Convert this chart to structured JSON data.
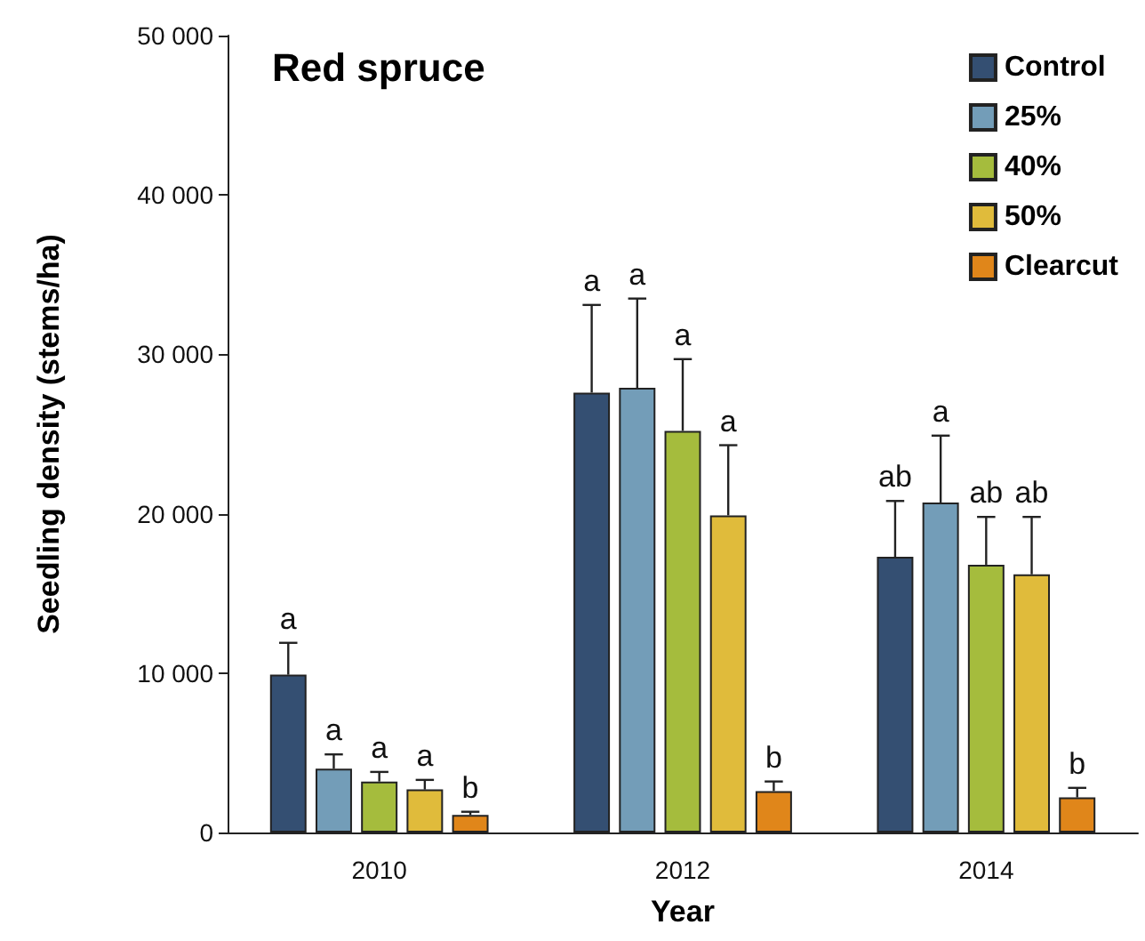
{
  "chart_data": {
    "type": "bar",
    "title": "Red spruce",
    "xlabel": "Year",
    "ylabel": "Seedling density (stems/ha)",
    "categories": [
      "2010",
      "2012",
      "2014"
    ],
    "series": [
      {
        "name": "Control",
        "color": "#344f72",
        "values": [
          9900,
          27600,
          17300
        ],
        "errors": [
          [
            9900,
            11900
          ],
          [
            27600,
            33100
          ],
          [
            17300,
            20800
          ]
        ]
      },
      {
        "name": "25%",
        "color": "#739db8",
        "values": [
          4000,
          27900,
          20700
        ],
        "errors": [
          [
            4000,
            4900
          ],
          [
            27900,
            33500
          ],
          [
            20700,
            24900
          ]
        ]
      },
      {
        "name": "40%",
        "color": "#a5bc3d",
        "values": [
          3200,
          25200,
          16800
        ],
        "errors": [
          [
            3200,
            3800
          ],
          [
            25200,
            29700
          ],
          [
            16800,
            19800
          ]
        ]
      },
      {
        "name": "50%",
        "color": "#e0bb3b",
        "values": [
          2700,
          19900,
          16200
        ],
        "errors": [
          [
            2700,
            3300
          ],
          [
            19900,
            24300
          ],
          [
            16200,
            19800
          ]
        ]
      },
      {
        "name": "Clearcut",
        "color": "#e0861a",
        "values": [
          1100,
          2600,
          2200
        ],
        "errors": [
          [
            1100,
            1300
          ],
          [
            2600,
            3200
          ],
          [
            2200,
            2800
          ]
        ]
      }
    ],
    "ylim": [
      0,
      50000
    ],
    "yticks": [
      0,
      {
        "value": 10000,
        "label": "10 000"
      },
      {
        "value": 20000,
        "label": "20 000"
      },
      {
        "value": 30000,
        "label": "30 000"
      },
      {
        "value": 40000,
        "label": "40 000"
      },
      {
        "value": 50000,
        "label": "50 000"
      }
    ],
    "grid": false,
    "legend": "top right",
    "annotations": [
      "a",
      "a",
      "a",
      "a",
      "b",
      "a",
      "a",
      "a",
      "a",
      "b",
      "ab",
      "a",
      "ab",
      "ab",
      "b"
    ]
  }
}
